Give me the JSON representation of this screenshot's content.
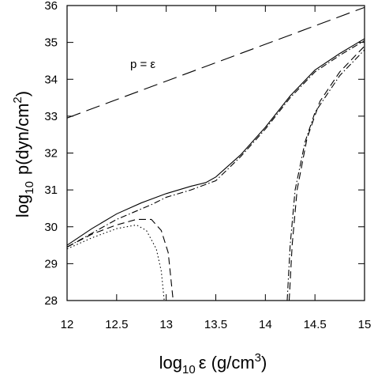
{
  "chart_data": {
    "type": "line",
    "x_label": {
      "base": "log",
      "sub": "10",
      "main": "ε (g/cm",
      "sup": "3",
      "end": ")"
    },
    "y_label": {
      "base": "log",
      "sub": "10",
      "main": "p(dyn/cm",
      "sup": "2",
      "end": ")"
    },
    "annotation": "p = ε",
    "xlim": [
      12,
      15
    ],
    "ylim": [
      28,
      36
    ],
    "xticks": [
      12,
      12.5,
      13,
      13.5,
      14,
      14.5,
      15
    ],
    "yticks": [
      28,
      29,
      30,
      31,
      32,
      33,
      34,
      35,
      36
    ],
    "series": [
      {
        "color": "#000000",
        "style": "longdash",
        "x": [
          12,
          15
        ],
        "values": [
          32.95,
          35.95
        ]
      },
      {
        "color": "#000000",
        "style": "solid",
        "x": [
          12,
          12.25,
          12.5,
          12.75,
          13,
          13.25,
          13.4,
          13.5,
          13.75,
          14,
          14.25,
          14.5,
          14.75,
          15
        ],
        "values": [
          29.5,
          29.95,
          30.35,
          30.65,
          30.9,
          31.1,
          31.2,
          31.35,
          31.95,
          32.7,
          33.55,
          34.25,
          34.7,
          35.1
        ]
      },
      {
        "color": "#000000",
        "style": "dashdot",
        "x": [
          12,
          12.5,
          12.85,
          13,
          13.25,
          13.5,
          13.75,
          14,
          14.25,
          14.5,
          14.75,
          15
        ],
        "values": [
          29.45,
          30.2,
          30.6,
          30.8,
          31.0,
          31.25,
          31.9,
          32.65,
          33.5,
          34.2,
          34.65,
          35.05
        ]
      },
      {
        "color": "#000000",
        "style": "dashed",
        "x": [
          12,
          12.25,
          12.5,
          12.7,
          12.85,
          12.95,
          13.02,
          13.07
        ],
        "values": [
          29.45,
          29.8,
          30.05,
          30.2,
          30.2,
          29.9,
          29.3,
          28
        ]
      },
      {
        "color": "#000000",
        "style": "dotted",
        "x": [
          12,
          12.25,
          12.5,
          12.7,
          12.8,
          12.9,
          12.95,
          12.98
        ],
        "values": [
          29.4,
          29.7,
          29.95,
          30.05,
          29.9,
          29.4,
          28.8,
          28
        ]
      },
      {
        "color": "#000000",
        "style": "dashdot",
        "x": [
          14.22,
          14.25,
          14.3,
          14.4,
          14.5,
          14.75,
          15
        ],
        "values": [
          28,
          29.5,
          31.0,
          32.3,
          33.1,
          34.1,
          34.8
        ]
      },
      {
        "color": "#000000",
        "style": "dashed",
        "x": [
          14.24,
          14.27,
          14.32,
          14.42,
          14.55,
          14.75,
          15
        ],
        "values": [
          28,
          29.5,
          31,
          32.4,
          33.4,
          34.2,
          34.9
        ]
      }
    ]
  }
}
